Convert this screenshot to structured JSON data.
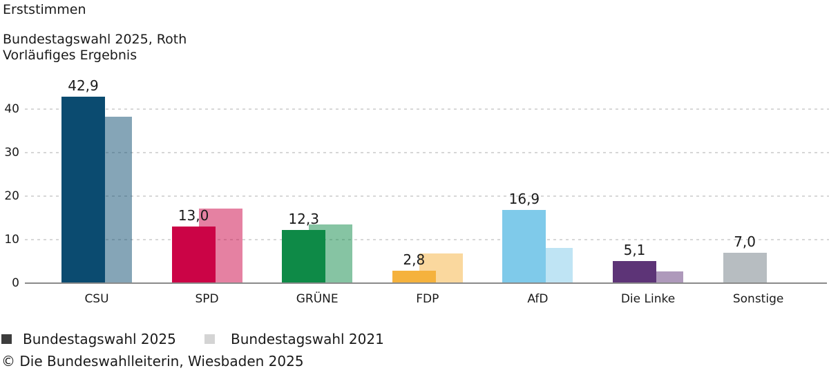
{
  "header": {
    "title": "Erststimmen",
    "subtitle_line1": "Bundestagswahl 2025, Roth",
    "subtitle_line2": "Vorläufiges Ergebnis"
  },
  "chart_data": {
    "type": "bar",
    "title": "Erststimmen",
    "subtitle": "Bundestagswahl 2025, Roth – Vorläufiges Ergebnis",
    "categories": [
      "CSU",
      "SPD",
      "GRÜNE",
      "FDP",
      "AfD",
      "Die Linke",
      "Sonstige"
    ],
    "series": [
      {
        "name": "Bundestagswahl 2025",
        "values": [
          42.9,
          13.0,
          12.3,
          2.8,
          16.9,
          5.1,
          7.0
        ],
        "value_labels": [
          "42,9",
          "13,0",
          "12,3",
          "2,8",
          "16,9",
          "5,1",
          "7,0"
        ],
        "colors": [
          "#0b4b70",
          "#cb0446",
          "#0e8a47",
          "#f5b23d",
          "#7fcaea",
          "#5d3477",
          "#b7bdc1"
        ]
      },
      {
        "name": "Bundestagswahl 2021",
        "values": [
          38.2,
          17.2,
          13.5,
          6.9,
          8.1,
          2.7,
          null
        ],
        "style_note": "same party colors at 50% opacity, offset right, drawn behind 2025 bars"
      }
    ],
    "xlabel": "",
    "ylabel": "",
    "y_ticks": [
      0,
      10,
      20,
      30,
      40
    ],
    "ylim": [
      0,
      45
    ],
    "grid": "horizontal dashed gridlines at 10/20/30/40, solid axis line at 0",
    "legend_position": "bottom-left"
  },
  "legend": {
    "items": [
      {
        "label": "Bundestagswahl 2025",
        "color": "#3d3d3d"
      },
      {
        "label": "Bundestagswahl 2021",
        "color": "#d4d4d4"
      }
    ]
  },
  "footer": {
    "copyright": "© Die Bundeswahlleiterin, Wiesbaden 2025"
  }
}
